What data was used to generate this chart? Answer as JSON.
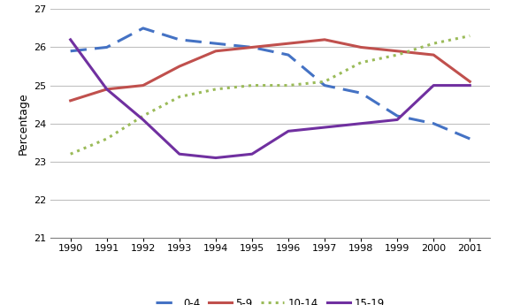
{
  "years": [
    1990,
    1991,
    1992,
    1993,
    1994,
    1995,
    1996,
    1997,
    1998,
    1999,
    2000,
    2001
  ],
  "series": {
    "0-4": [
      25.9,
      26.0,
      26.5,
      26.2,
      26.1,
      26.0,
      25.8,
      25.0,
      24.8,
      24.2,
      24.0,
      23.6
    ],
    "5-9": [
      24.6,
      24.9,
      25.0,
      25.5,
      25.9,
      26.0,
      26.1,
      26.2,
      26.0,
      25.9,
      25.8,
      25.1
    ],
    "10-14": [
      23.2,
      23.6,
      24.2,
      24.7,
      24.9,
      25.0,
      25.0,
      25.1,
      25.6,
      25.8,
      26.1,
      26.3
    ],
    "15-19": [
      26.2,
      24.9,
      24.1,
      23.2,
      23.1,
      23.2,
      23.8,
      23.9,
      24.0,
      24.1,
      25.0,
      25.0
    ]
  },
  "series_order": [
    "0-4",
    "5-9",
    "10-14",
    "15-19"
  ],
  "colors": {
    "0-4": "#4472C4",
    "5-9": "#C0504D",
    "10-14": "#9BBB59",
    "15-19": "#7030A0"
  },
  "linestyles": {
    "0-4": "--",
    "5-9": "-",
    "10-14": ":",
    "15-19": "-"
  },
  "linewidths": {
    "0-4": 2.2,
    "5-9": 2.2,
    "10-14": 2.2,
    "15-19": 2.2
  },
  "dash_patterns": {
    "0-4": [
      6,
      3
    ],
    "5-9": null,
    "10-14": [
      2,
      2
    ],
    "15-19": null
  },
  "ylabel": "Percentage",
  "ylim": [
    21,
    27
  ],
  "yticks": [
    21,
    22,
    23,
    24,
    25,
    26,
    27
  ],
  "background_color": "#ffffff",
  "grid_color": "#c0c0c0",
  "legend_labels": [
    "0-4",
    "5-9",
    "10-14",
    "15-19"
  ]
}
